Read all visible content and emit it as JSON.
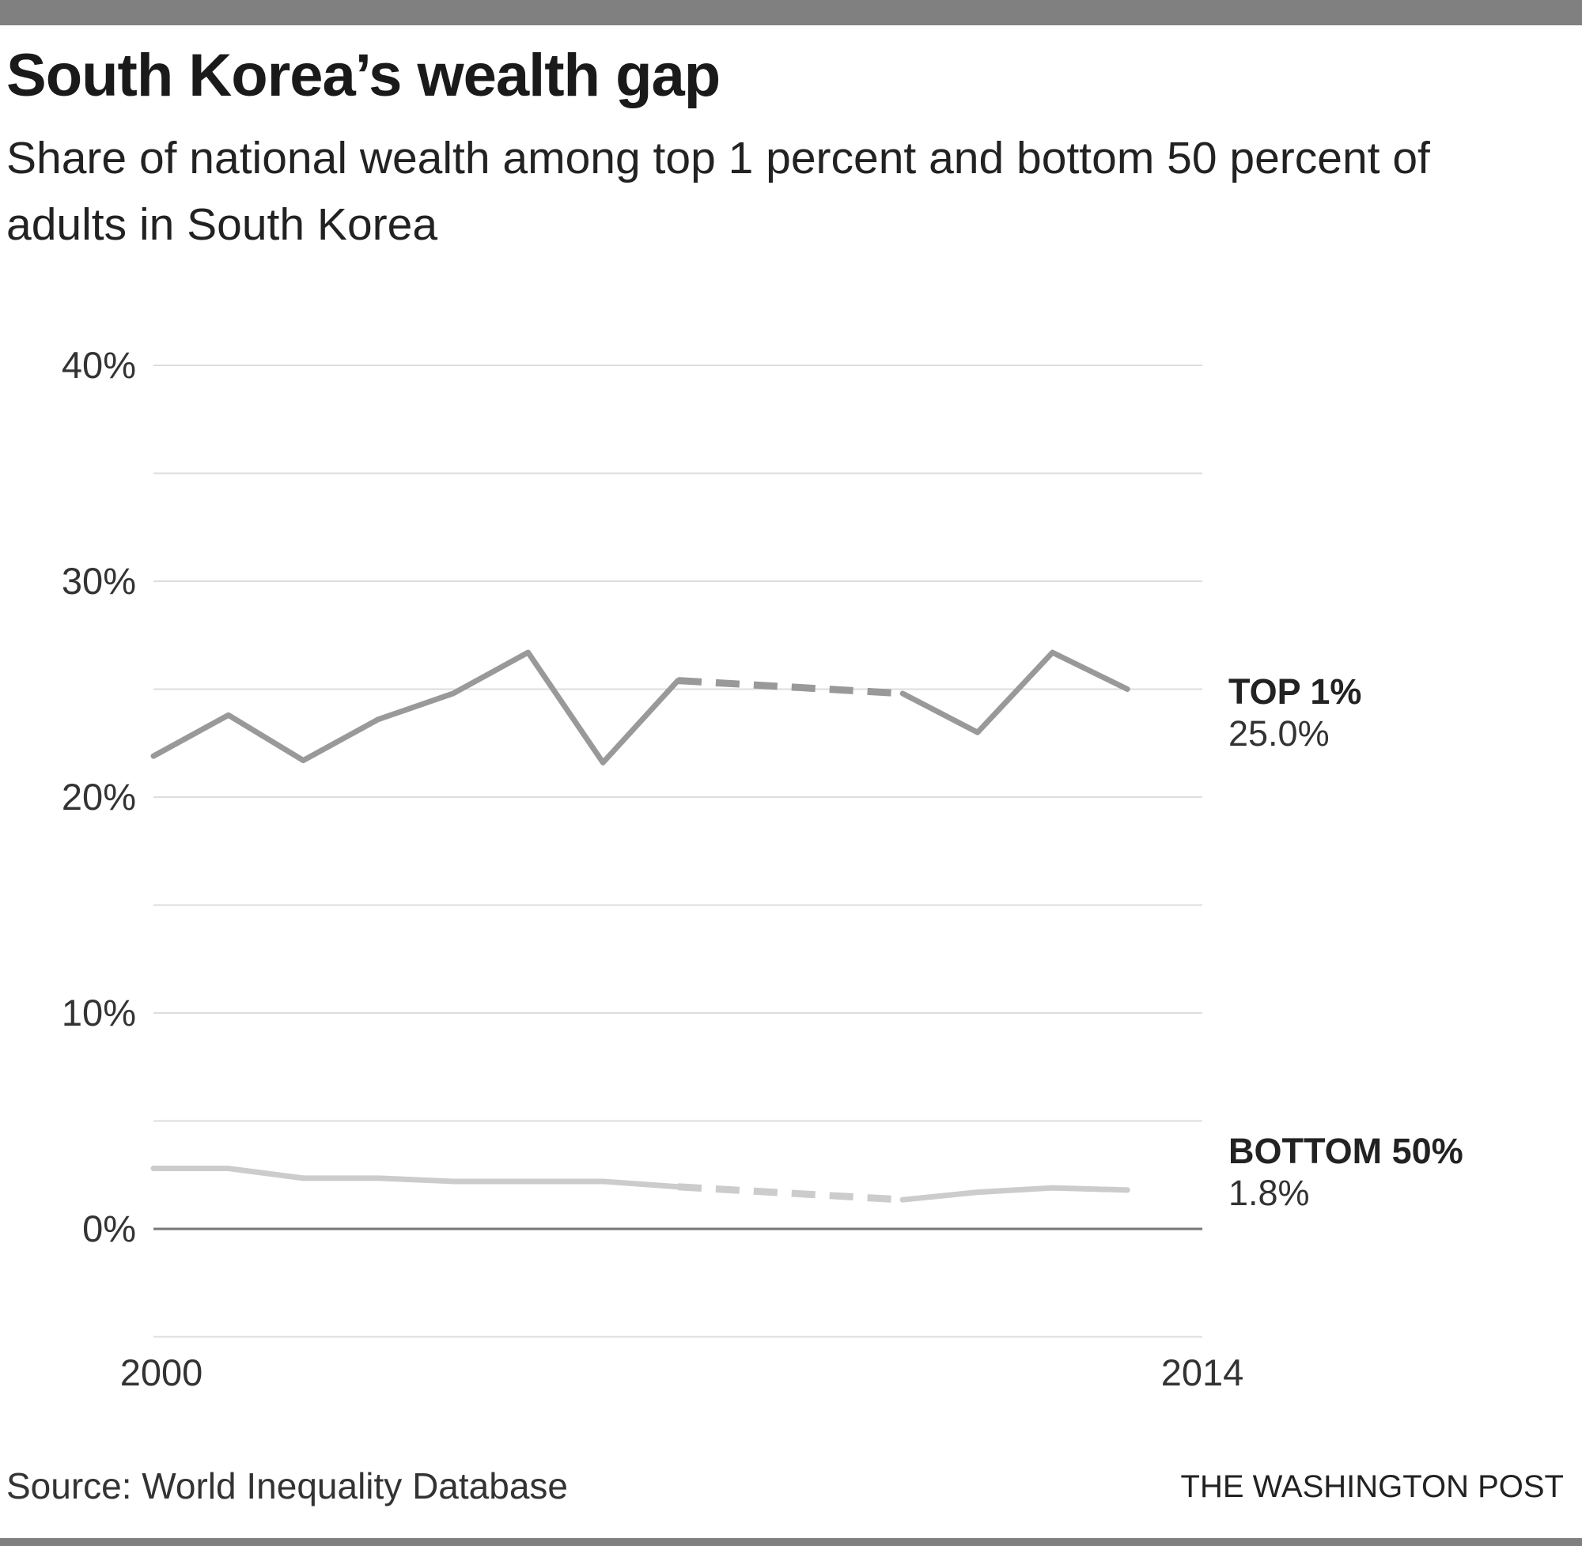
{
  "header": {
    "title": "South Korea’s wealth gap",
    "subtitle": "Share of national wealth among top 1 percent and bottom 50 percent of adults in South Korea"
  },
  "footer": {
    "source": "Source: World Inequality Database",
    "credit": "THE WASHINGTON POST"
  },
  "chart_data": {
    "type": "line",
    "title": "South Korea’s wealth gap",
    "subtitle": "Share of national wealth among top 1 percent and bottom 50 percent of adults in South Korea",
    "xlabel": "",
    "ylabel": "",
    "x": [
      2000,
      2001,
      2002,
      2003,
      2004,
      2005,
      2006,
      2007,
      2008,
      2009,
      2010,
      2011,
      2012,
      2013
    ],
    "xlim": [
      2000,
      2014
    ],
    "x_tick_labels": [
      "2000",
      "2014"
    ],
    "ylim": [
      -5,
      40
    ],
    "y_ticks": [
      0,
      10,
      20,
      30,
      40
    ],
    "y_tick_labels": [
      "0%",
      "10%",
      "20%",
      "30%",
      "40%"
    ],
    "gridlines": [
      -5,
      0,
      5,
      10,
      15,
      20,
      25,
      30,
      35,
      40
    ],
    "grid": true,
    "missing_years_note_style": "dashed",
    "series": [
      {
        "name": "TOP 1%",
        "end_label": "25.0%",
        "color": "#999999",
        "values": [
          21.9,
          23.8,
          21.7,
          23.6,
          24.8,
          26.7,
          21.6,
          25.4,
          null,
          null,
          24.8,
          23.0,
          26.7,
          25.0
        ]
      },
      {
        "name": "BOTTOM 50%",
        "end_label": "1.8%",
        "color": "#cccccc",
        "values": [
          2.8,
          2.8,
          2.35,
          2.35,
          2.2,
          2.2,
          2.2,
          1.95,
          null,
          null,
          1.35,
          1.7,
          1.9,
          1.8
        ]
      }
    ]
  }
}
